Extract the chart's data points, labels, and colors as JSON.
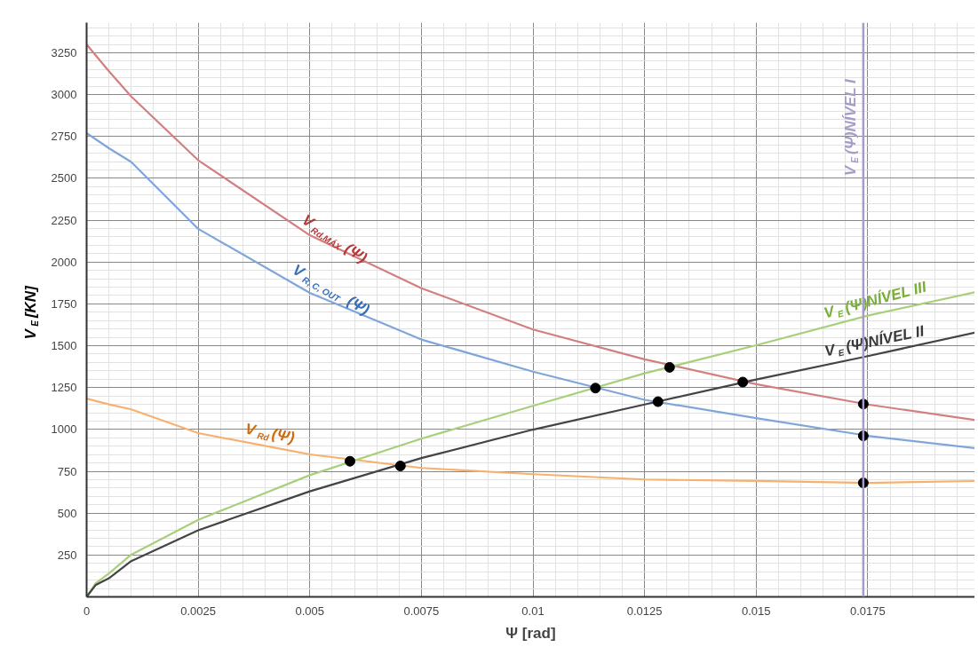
{
  "chart_data": {
    "type": "line",
    "xlabel": "Ψ [rad]",
    "ylabel": "V$_{E}$ [KN]",
    "x": [
      0,
      0.0005,
      0.001,
      0.0025,
      0.005,
      0.0075,
      0.01,
      0.0125,
      0.015,
      0.0175,
      0.0199
    ],
    "series": [
      {
        "color": "#d47f7f",
        "values": [
          3300,
          3140,
          2989,
          2608,
          2160,
          1844,
          1597,
          1419,
          1270,
          1149,
          1056
        ]
      },
      {
        "color": "#7fa6d9",
        "values": [
          2770,
          2680,
          2598,
          2198,
          1816,
          1537,
          1345,
          1177,
          1068,
          962,
          888
        ]
      },
      {
        "color": "#f8b070",
        "values": [
          1184,
          1150,
          1120,
          978,
          851,
          770,
          733,
          701,
          692,
          681,
          692
        ]
      },
      {
        "color": "#a9cf7c",
        "x": [
          0,
          0.0002,
          0.0005,
          0.001,
          0.0025,
          0.005,
          0.0075,
          0.01,
          0.0125,
          0.015,
          0.0175,
          0.0199
        ],
        "values": [
          0,
          80,
          140,
          252,
          460,
          727,
          945,
          1141,
          1335,
          1503,
          1680,
          1820
        ]
      },
      {
        "color": "#444444",
        "x": [
          0,
          0.0002,
          0.0005,
          0.001,
          0.0025,
          0.005,
          0.0075,
          0.01,
          0.0125,
          0.015,
          0.0175,
          0.0199
        ],
        "values": [
          0,
          70,
          111,
          214,
          398,
          630,
          829,
          999,
          1149,
          1298,
          1438,
          1578
        ]
      },
      {
        "type": "scatter",
        "color": "#000000",
        "marker": "circle",
        "x": [
          0.0059,
          0.00703,
          0.0114,
          0.0128,
          0.01306,
          0.0147,
          0.0174,
          0.0174,
          0.0174
        ],
        "values": [
          810,
          782,
          1247,
          1166,
          1371,
          1283,
          1152,
          962,
          681
        ]
      }
    ],
    "annotations": [
      {
        "text": "V$_{Rd,MÁX}$ (Ψ)",
        "x": 0.0047,
        "y": 2196
      },
      {
        "text": "V$_{R, C, OUT}$ (Ψ)",
        "x": 0.0045,
        "y": 1892
      },
      {
        "text": "V$_{Rd}$ (Ψ)",
        "x": 0.0035,
        "y": 927
      },
      {
        "text": "V$_{E}$ (Ψ)NÍVEL III",
        "x": 0.0166,
        "y": 1616
      },
      {
        "text": "V$_{E}$ (Ψ)NÍVEL II",
        "x": 0.0166,
        "y": 1388
      }
    ],
    "ref_lines": [
      {
        "axis": "x",
        "value": 0.0174,
        "label": "V$_{E}$(Ψ)NÍVEL I",
        "color": "#a79bc9"
      }
    ],
    "xlim": [
      0,
      0.0199
    ],
    "ylim": [
      0,
      3430
    ],
    "xticks": [
      0,
      0.0025,
      0.005,
      0.0075,
      0.01,
      0.0125,
      0.015,
      0.0175
    ],
    "yticks": [
      250,
      500,
      750,
      1000,
      1250,
      1500,
      1750,
      2000,
      2250,
      2500,
      2750,
      3000,
      3250
    ],
    "grid": true,
    "line_style": "solid"
  }
}
